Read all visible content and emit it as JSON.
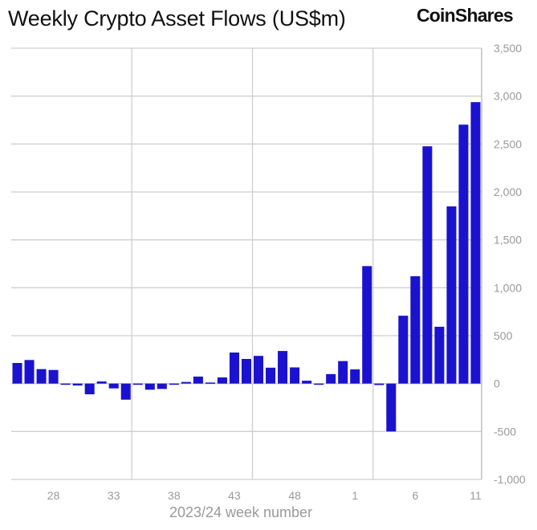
{
  "chart_data": {
    "type": "bar",
    "title": "Weekly Crypto Asset Flows (US$m)",
    "xlabel": "2023/24 week number",
    "ylabel": "",
    "ylim": [
      -1000,
      3500
    ],
    "yticks": [
      "3,500",
      "3,000",
      "2,500",
      "2,000",
      "1,500",
      "1,000",
      "500",
      "0",
      "-500",
      "-1,000"
    ],
    "ytick_values": [
      3500,
      3000,
      2500,
      2000,
      1500,
      1000,
      500,
      0,
      -500,
      -1000
    ],
    "xtick_labels": [
      "28",
      "33",
      "38",
      "43",
      "48",
      "1",
      "6",
      "11"
    ],
    "categories": [
      "25",
      "26",
      "27",
      "28",
      "29",
      "30",
      "31",
      "32",
      "33",
      "34",
      "35",
      "36",
      "37",
      "38",
      "39",
      "40",
      "41",
      "42",
      "43",
      "44",
      "45",
      "46",
      "47",
      "48",
      "49",
      "50",
      "51",
      "52",
      "1",
      "2",
      "3",
      "4",
      "5",
      "6",
      "7",
      "8",
      "9",
      "10",
      "11"
    ],
    "values": [
      215,
      246,
      151,
      142,
      0,
      -20,
      -112,
      22,
      -50,
      -168,
      -5,
      -64,
      -56,
      -8,
      17,
      73,
      11,
      64,
      324,
      257,
      289,
      166,
      340,
      169,
      30,
      -10,
      99,
      235,
      148,
      1226,
      -15,
      -500,
      708,
      1120,
      2476,
      593,
      1849,
      2702,
      2937
    ],
    "grid": true,
    "y_axis_position": "right",
    "bar_color": "#1a12cf"
  },
  "brand": {
    "logo": "CoinShares"
  }
}
